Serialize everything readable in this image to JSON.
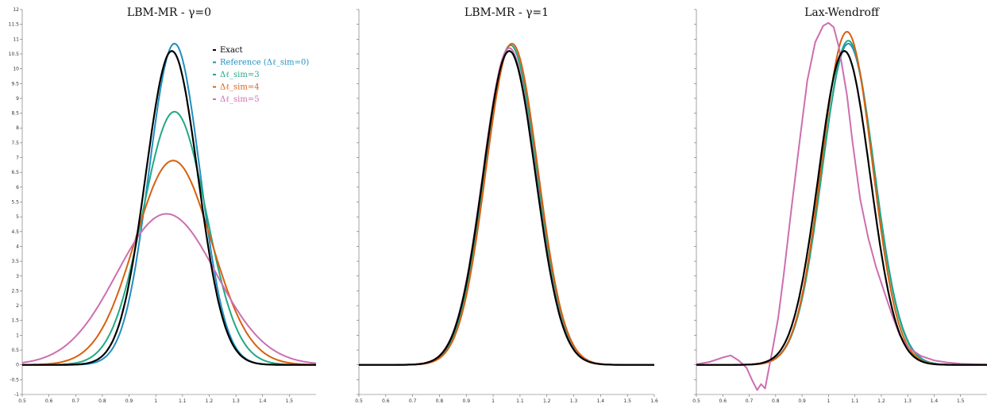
{
  "chart_data": [
    {
      "type": "line",
      "title": "LBM-MR - γ=0",
      "xlim": [
        0.5,
        1.6
      ],
      "ylim": [
        -1,
        12
      ],
      "x_ticks": [
        "0.5",
        "0.6",
        "0.7",
        "0.8",
        "0.9",
        "1",
        "1.1",
        "1.2",
        "1.3",
        "1.4",
        "1.5"
      ],
      "y_ticks": [
        "-1",
        "-0.5",
        "0",
        "0.5",
        "1",
        "1.5",
        "2",
        "2.5",
        "3",
        "3.5",
        "4",
        "4.5",
        "5",
        "5.5",
        "6",
        "6.5",
        "7",
        "7.5",
        "8",
        "8.5",
        "9",
        "9.5",
        "10",
        "10.5",
        "11",
        "11.5",
        "12"
      ],
      "legend": {
        "placement": "top-right"
      },
      "series": [
        {
          "name": "Exact",
          "color": "#000000",
          "peak": 10.6,
          "center": 1.06,
          "sigma": 0.0975
        },
        {
          "name": "Reference (Δℓ_sim=0)",
          "color": "#1f8fbf",
          "peak": 10.85,
          "center": 1.07,
          "sigma": 0.095
        },
        {
          "name": "Δℓ_sim=3",
          "color": "#22a884",
          "peak": 8.55,
          "center": 1.07,
          "sigma": 0.118
        },
        {
          "name": "Δℓ_sim=4",
          "color": "#d9600f",
          "peak": 6.9,
          "center": 1.065,
          "sigma": 0.143
        },
        {
          "name": "Δℓ_sim=5",
          "color": "#cc6fb0",
          "peak": 5.1,
          "center": 1.04,
          "sigma": 0.186
        }
      ]
    },
    {
      "type": "line",
      "title": "LBM-MR - γ=1",
      "xlim": [
        0.5,
        1.6
      ],
      "ylim": [
        -1,
        12
      ],
      "x_ticks": [
        "0.5",
        "0.6",
        "0.7",
        "0.8",
        "0.9",
        "1",
        "1.1",
        "1.2",
        "1.3",
        "1.4",
        "1.5",
        "1.6"
      ],
      "series": [
        {
          "name": "Exact",
          "color": "#000000",
          "peak": 10.6,
          "center": 1.06,
          "sigma": 0.0975
        },
        {
          "name": "Reference (Δℓ_sim=0)",
          "color": "#1f8fbf",
          "peak": 10.8,
          "center": 1.065,
          "sigma": 0.097
        },
        {
          "name": "Δℓ_sim=3",
          "color": "#22a884",
          "peak": 10.8,
          "center": 1.065,
          "sigma": 0.097
        },
        {
          "name": "Δℓ_sim=4",
          "color": "#d9600f",
          "peak": 10.85,
          "center": 1.07,
          "sigma": 0.097
        },
        {
          "name": "Δℓ_sim=5",
          "color": "#cc6fb0",
          "peak": 10.7,
          "center": 1.06,
          "sigma": 0.098
        }
      ]
    },
    {
      "type": "line",
      "title": "Lax-Wendroff",
      "xlim": [
        0.5,
        1.6
      ],
      "ylim": [
        -1,
        12
      ],
      "x_ticks": [
        "0.5",
        "0.6",
        "0.7",
        "0.8",
        "0.9",
        "1",
        "1.1",
        "1.2",
        "1.3",
        "1.4",
        "1.5"
      ],
      "series": [
        {
          "name": "Exact",
          "color": "#000000",
          "peak": 10.6,
          "center": 1.06,
          "sigma": 0.0975
        },
        {
          "name": "Reference (Δℓ_sim=0)",
          "color": "#1f8fbf",
          "peak": 10.85,
          "center": 1.075,
          "sigma": 0.099
        },
        {
          "name": "Δℓ_sim=3",
          "color": "#22a884",
          "peak": 10.95,
          "center": 1.075,
          "sigma": 0.098
        },
        {
          "name": "Δℓ_sim=4",
          "color": "#d9600f",
          "peak": 11.25,
          "center": 1.07,
          "sigma": 0.096
        },
        {
          "name": "Δℓ_sim=5",
          "color": "#cc6fb0",
          "x": [
            0.5,
            0.55,
            0.6,
            0.63,
            0.66,
            0.69,
            0.71,
            0.73,
            0.745,
            0.76,
            0.775,
            0.79,
            0.81,
            0.83,
            0.86,
            0.89,
            0.92,
            0.95,
            0.98,
            1.0,
            1.02,
            1.04,
            1.055,
            1.07,
            1.09,
            1.12,
            1.15,
            1.18,
            1.21,
            1.24,
            1.27,
            1.3,
            1.35,
            1.4,
            1.45,
            1.5,
            1.55,
            1.6
          ],
          "y": [
            0.02,
            0.1,
            0.25,
            0.32,
            0.15,
            -0.1,
            -0.5,
            -0.85,
            -0.65,
            -0.8,
            -0.1,
            0.6,
            1.6,
            3.0,
            5.3,
            7.5,
            9.6,
            10.9,
            11.45,
            11.55,
            11.4,
            10.7,
            9.9,
            9.1,
            7.6,
            5.6,
            4.3,
            3.3,
            2.5,
            1.7,
            1.0,
            0.6,
            0.3,
            0.15,
            0.08,
            0.04,
            0.02,
            0.01
          ]
        }
      ]
    }
  ]
}
